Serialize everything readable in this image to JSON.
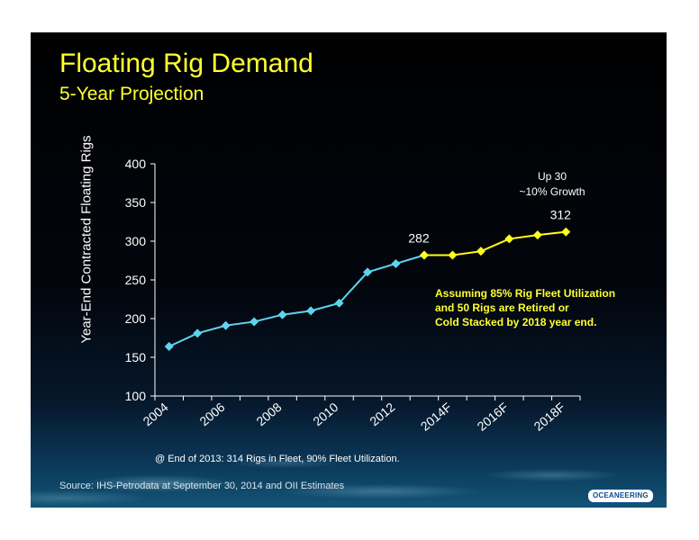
{
  "slide": {
    "title": "Floating Rig Demand",
    "subtitle": "5-Year Projection",
    "footnote": "@ End of 2013:  314 Rigs in Fleet, 90% Fleet Utilization.",
    "source": "Source:  IHS-Petrodata at September 30, 2014 and OII Estimates",
    "logo_text": "OCEANEERING"
  },
  "chart_data": {
    "type": "line",
    "ylabel": "Year-End Contracted Floating Rigs",
    "xlabel": "",
    "ylim": [
      100,
      400
    ],
    "yticks": [
      100,
      150,
      200,
      250,
      300,
      350,
      400
    ],
    "x": [
      "2004",
      "2005",
      "2006",
      "2007",
      "2008",
      "2009",
      "2010",
      "2011",
      "2012",
      "2013",
      "2014F",
      "2015F",
      "2016F",
      "2017F",
      "2018F"
    ],
    "xtick_labels": [
      "2004",
      "2006",
      "2008",
      "2010",
      "2012",
      "2014F",
      "2016F",
      "2018F"
    ],
    "series": [
      {
        "name": "",
        "color": "#5fd3ee",
        "x": [
          "2004",
          "2005",
          "2006",
          "2007",
          "2008",
          "2009",
          "2010",
          "2011",
          "2012",
          "2013"
        ],
        "values": [
          164,
          181,
          191,
          196,
          205,
          210,
          220,
          260,
          271,
          282
        ]
      },
      {
        "name": "",
        "color": "#ffff1a",
        "x": [
          "2013",
          "2014F",
          "2015F",
          "2016F",
          "2017F",
          "2018F"
        ],
        "values": [
          282,
          282,
          287,
          303,
          308,
          312
        ]
      }
    ],
    "point_labels": [
      {
        "x": "2013",
        "text": "282"
      },
      {
        "x": "2018F",
        "text": "312"
      }
    ],
    "annotations": [
      {
        "text": "Up 30",
        "color": "#ffffff"
      },
      {
        "text": "~10% Growth",
        "color": "#ffffff"
      },
      {
        "text": "Assuming 85% Rig Fleet Utilization",
        "color": "#ffff33"
      },
      {
        "text": "and 50 Rigs are Retired or",
        "color": "#ffff33"
      },
      {
        "text": "Cold Stacked by 2018 year end.",
        "color": "#ffff33"
      }
    ],
    "grid": false
  }
}
